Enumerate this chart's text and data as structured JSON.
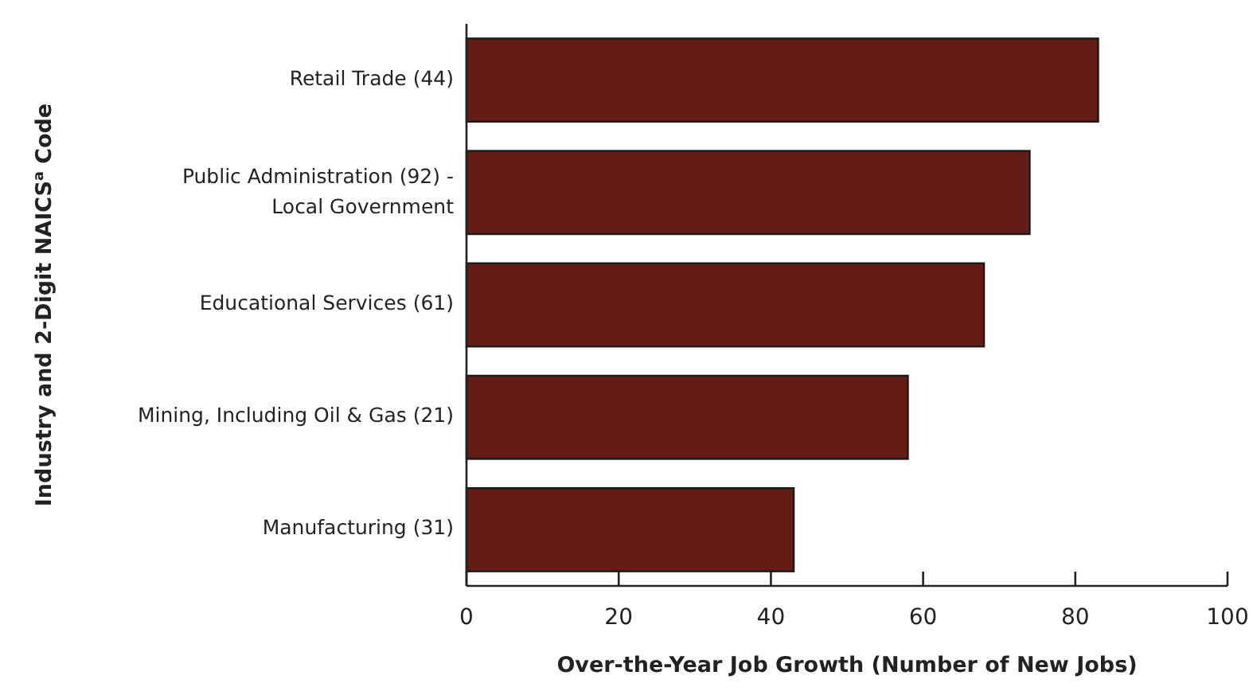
{
  "chart_data": {
    "type": "bar",
    "orientation": "horizontal",
    "xlabel": "Over-the-Year Job Growth (Number of New Jobs)",
    "ylabel": "Industry and 2-Digit NAICS$^{a}$ Code",
    "categories": [
      "Retail Trade (44)",
      "Public Administration (92) - Local Government",
      "Educational Services (61)",
      "Mining, Including Oil & Gas (21)",
      "Manufacturing (31)"
    ],
    "values": [
      83,
      74,
      68,
      58,
      43
    ],
    "color": "#641c16",
    "xlim": [
      0,
      100
    ],
    "xticks": [
      0,
      20,
      40,
      60,
      80,
      100
    ],
    "grid": false
  }
}
